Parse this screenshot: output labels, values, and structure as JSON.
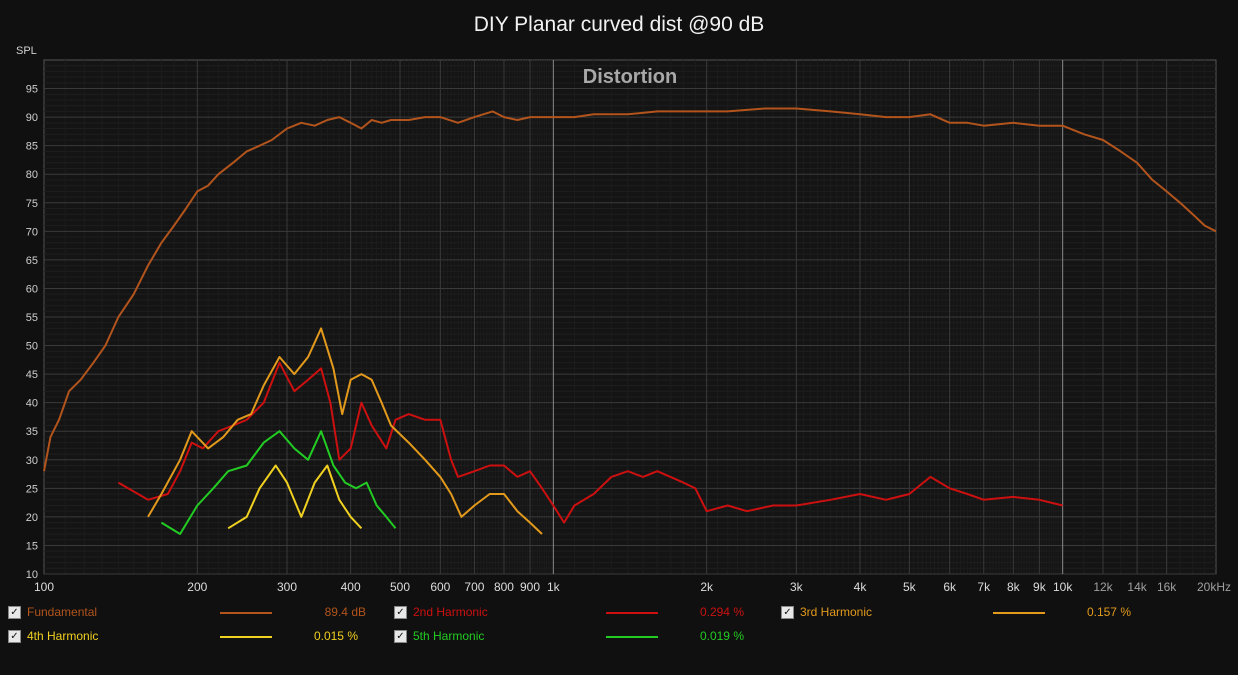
{
  "title": "DIY Planar curved dist @90 dB",
  "chart_data": {
    "type": "line",
    "title": "DIY Planar curved dist @90 dB",
    "subtitle": "Distortion",
    "ylabel": "SPL",
    "xlabel": "",
    "xscale": "log",
    "xlim": [
      100,
      20000
    ],
    "ylim": [
      10,
      100
    ],
    "grid": true,
    "y_ticks": [
      10,
      15,
      20,
      25,
      30,
      35,
      40,
      45,
      50,
      55,
      60,
      65,
      70,
      75,
      80,
      85,
      90,
      95
    ],
    "x_ticks": [
      {
        "v": 100,
        "label": "100",
        "major": true
      },
      {
        "v": 200,
        "label": "200",
        "major": false
      },
      {
        "v": 300,
        "label": "300",
        "major": false
      },
      {
        "v": 400,
        "label": "400",
        "major": false
      },
      {
        "v": 500,
        "label": "500",
        "major": false
      },
      {
        "v": 600,
        "label": "600",
        "major": false
      },
      {
        "v": 700,
        "label": "700",
        "major": false
      },
      {
        "v": 800,
        "label": "800",
        "major": false
      },
      {
        "v": 900,
        "label": "900",
        "major": false
      },
      {
        "v": 1000,
        "label": "1k",
        "major": true
      },
      {
        "v": 2000,
        "label": "2k",
        "major": false
      },
      {
        "v": 3000,
        "label": "3k",
        "major": false
      },
      {
        "v": 4000,
        "label": "4k",
        "major": false
      },
      {
        "v": 5000,
        "label": "5k",
        "major": false
      },
      {
        "v": 6000,
        "label": "6k",
        "major": false
      },
      {
        "v": 7000,
        "label": "7k",
        "major": false
      },
      {
        "v": 8000,
        "label": "8k",
        "major": false
      },
      {
        "v": 9000,
        "label": "9k",
        "major": false
      },
      {
        "v": 10000,
        "label": "10k",
        "major": true
      },
      {
        "v": 12000,
        "label": "12k",
        "major": false
      },
      {
        "v": 14000,
        "label": "14k",
        "major": false
      },
      {
        "v": 16000,
        "label": "16k",
        "major": false
      },
      {
        "v": 20000,
        "label": "20kHz",
        "major": false
      }
    ],
    "series": [
      {
        "name": "Fundamental",
        "color": "#b2541c",
        "value": "89.4 dB",
        "points": [
          [
            100,
            28
          ],
          [
            103,
            34
          ],
          [
            107,
            37
          ],
          [
            112,
            42
          ],
          [
            118,
            44
          ],
          [
            125,
            47
          ],
          [
            132,
            50
          ],
          [
            140,
            55
          ],
          [
            150,
            59
          ],
          [
            160,
            64
          ],
          [
            170,
            68
          ],
          [
            180,
            71
          ],
          [
            190,
            74
          ],
          [
            200,
            77
          ],
          [
            210,
            78
          ],
          [
            220,
            80
          ],
          [
            235,
            82
          ],
          [
            250,
            84
          ],
          [
            265,
            85
          ],
          [
            280,
            86
          ],
          [
            300,
            88
          ],
          [
            320,
            89
          ],
          [
            340,
            88.5
          ],
          [
            360,
            89.5
          ],
          [
            380,
            90
          ],
          [
            400,
            89
          ],
          [
            420,
            88
          ],
          [
            440,
            89.5
          ],
          [
            460,
            89
          ],
          [
            480,
            89.5
          ],
          [
            520,
            89.5
          ],
          [
            560,
            90
          ],
          [
            600,
            90
          ],
          [
            650,
            89
          ],
          [
            700,
            90
          ],
          [
            760,
            91
          ],
          [
            800,
            90
          ],
          [
            850,
            89.5
          ],
          [
            900,
            90
          ],
          [
            1000,
            90
          ],
          [
            1100,
            90
          ],
          [
            1200,
            90.5
          ],
          [
            1400,
            90.5
          ],
          [
            1600,
            91
          ],
          [
            1800,
            91
          ],
          [
            2000,
            91
          ],
          [
            2200,
            91
          ],
          [
            2600,
            91.5
          ],
          [
            3000,
            91.5
          ],
          [
            3500,
            91
          ],
          [
            4000,
            90.5
          ],
          [
            4500,
            90
          ],
          [
            5000,
            90
          ],
          [
            5500,
            90.5
          ],
          [
            6000,
            89
          ],
          [
            6500,
            89
          ],
          [
            7000,
            88.5
          ],
          [
            8000,
            89
          ],
          [
            9000,
            88.5
          ],
          [
            10000,
            88.5
          ],
          [
            11000,
            87
          ],
          [
            12000,
            86
          ],
          [
            13000,
            84
          ],
          [
            14000,
            82
          ],
          [
            15000,
            79
          ],
          [
            16000,
            77
          ],
          [
            17000,
            75
          ],
          [
            18000,
            73
          ],
          [
            19000,
            71
          ],
          [
            20000,
            70
          ]
        ]
      },
      {
        "name": "2nd Harmonic",
        "color": "#cc1010",
        "value": "0.294 %",
        "points": [
          [
            140,
            26
          ],
          [
            160,
            23
          ],
          [
            175,
            24
          ],
          [
            185,
            28
          ],
          [
            195,
            33
          ],
          [
            205,
            32
          ],
          [
            220,
            35
          ],
          [
            235,
            36
          ],
          [
            250,
            37
          ],
          [
            270,
            40
          ],
          [
            290,
            47
          ],
          [
            310,
            42
          ],
          [
            330,
            44
          ],
          [
            350,
            46
          ],
          [
            365,
            40
          ],
          [
            380,
            30
          ],
          [
            400,
            32
          ],
          [
            420,
            40
          ],
          [
            440,
            36
          ],
          [
            470,
            32
          ],
          [
            490,
            37
          ],
          [
            520,
            38
          ],
          [
            560,
            37
          ],
          [
            600,
            37
          ],
          [
            630,
            30
          ],
          [
            650,
            27
          ],
          [
            700,
            28
          ],
          [
            750,
            29
          ],
          [
            800,
            29
          ],
          [
            850,
            27
          ],
          [
            900,
            28
          ],
          [
            950,
            25
          ],
          [
            1000,
            22
          ],
          [
            1050,
            19
          ],
          [
            1100,
            22
          ],
          [
            1200,
            24
          ],
          [
            1300,
            27
          ],
          [
            1400,
            28
          ],
          [
            1500,
            27
          ],
          [
            1600,
            28
          ],
          [
            1800,
            26
          ],
          [
            1900,
            25
          ],
          [
            2000,
            21
          ],
          [
            2200,
            22
          ],
          [
            2400,
            21
          ],
          [
            2700,
            22
          ],
          [
            3000,
            22
          ],
          [
            3500,
            23
          ],
          [
            4000,
            24
          ],
          [
            4500,
            23
          ],
          [
            5000,
            24
          ],
          [
            5500,
            27
          ],
          [
            6000,
            25
          ],
          [
            6500,
            24
          ],
          [
            7000,
            23
          ],
          [
            8000,
            23.5
          ],
          [
            9000,
            23
          ],
          [
            10000,
            22
          ]
        ]
      },
      {
        "name": "3rd Harmonic",
        "color": "#e39a1c",
        "value": "0.157 %",
        "points": [
          [
            160,
            20
          ],
          [
            170,
            24
          ],
          [
            185,
            30
          ],
          [
            195,
            35
          ],
          [
            210,
            32
          ],
          [
            225,
            34
          ],
          [
            240,
            37
          ],
          [
            255,
            38
          ],
          [
            270,
            43
          ],
          [
            290,
            48
          ],
          [
            310,
            45
          ],
          [
            330,
            48
          ],
          [
            350,
            53
          ],
          [
            370,
            46
          ],
          [
            385,
            38
          ],
          [
            400,
            44
          ],
          [
            420,
            45
          ],
          [
            440,
            44
          ],
          [
            460,
            40
          ],
          [
            480,
            36
          ],
          [
            520,
            33
          ],
          [
            560,
            30
          ],
          [
            600,
            27
          ],
          [
            630,
            24
          ],
          [
            660,
            20
          ],
          [
            700,
            22
          ],
          [
            750,
            24
          ],
          [
            800,
            24
          ],
          [
            850,
            21
          ],
          [
            900,
            19
          ],
          [
            950,
            17
          ]
        ]
      },
      {
        "name": "4th Harmonic",
        "color": "#f0d020",
        "value": "0.015 %",
        "points": [
          [
            230,
            18
          ],
          [
            250,
            20
          ],
          [
            265,
            25
          ],
          [
            285,
            29
          ],
          [
            300,
            26
          ],
          [
            320,
            20
          ],
          [
            340,
            26
          ],
          [
            360,
            29
          ],
          [
            380,
            23
          ],
          [
            400,
            20
          ],
          [
            420,
            18
          ]
        ]
      },
      {
        "name": "5th Harmonic",
        "color": "#22cc22",
        "value": "0.019 %",
        "points": [
          [
            170,
            19
          ],
          [
            185,
            17
          ],
          [
            200,
            22
          ],
          [
            215,
            25
          ],
          [
            230,
            28
          ],
          [
            250,
            29
          ],
          [
            270,
            33
          ],
          [
            290,
            35
          ],
          [
            310,
            32
          ],
          [
            330,
            30
          ],
          [
            350,
            35
          ],
          [
            370,
            29
          ],
          [
            390,
            26
          ],
          [
            410,
            25
          ],
          [
            430,
            26
          ],
          [
            450,
            22
          ],
          [
            470,
            20
          ],
          [
            490,
            18
          ]
        ]
      }
    ]
  },
  "legend_row_1": [
    {
      "label": "Fundamental",
      "value": "89.4 dB"
    },
    {
      "label": "2nd Harmonic",
      "value": "0.294 %"
    },
    {
      "label": "3rd Harmonic",
      "value": "0.157 %"
    }
  ],
  "legend_row_2": [
    {
      "label": "4th Harmonic",
      "value": "0.015 %"
    },
    {
      "label": "5th Harmonic",
      "value": "0.019 %"
    }
  ]
}
